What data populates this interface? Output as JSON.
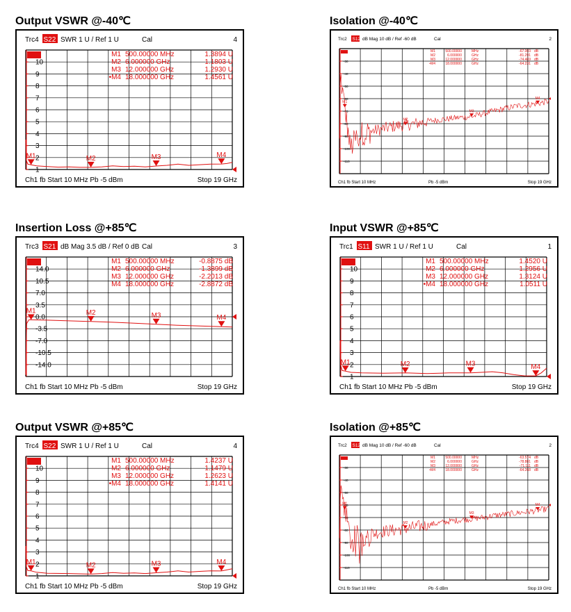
{
  "chart_data": [
    {
      "type": "line",
      "title": "Output VSWR @-40℃",
      "header": {
        "trc": "Trc4",
        "param": "S22",
        "fmt": "SWR  1 U /  Ref 1 U",
        "cal": "Cal",
        "num": "4"
      },
      "footer": {
        "left": "Ch1  fb  Start  10 MHz     Pb   -5 dBm",
        "right": "Stop  19 GHz"
      },
      "yticks": [
        "10",
        "9",
        "8",
        "7",
        "6",
        "5",
        "4",
        "3",
        "2",
        "1"
      ],
      "ylim": [
        1,
        11
      ],
      "xlim": [
        0.01,
        19
      ],
      "markers": [
        {
          "label": "M1",
          "freq": "500.00000 MHz",
          "value": "1.3894 U",
          "x": 0.5,
          "y": 1.39
        },
        {
          "label": "M2",
          "freq": "6.000000 GHz",
          "value": "1.1803 U",
          "x": 6,
          "y": 1.18
        },
        {
          "label": "M3",
          "freq": "12.000000 GHz",
          "value": "1.2930 U",
          "x": 12,
          "y": 1.29
        },
        {
          "label": "M4",
          "freq": "18.000000 GHz",
          "value": "1.4561 U",
          "x": 18,
          "y": 1.46
        }
      ],
      "trace": [
        [
          0.01,
          3.5
        ],
        [
          0.05,
          1.8
        ],
        [
          0.2,
          1.45
        ],
        [
          0.5,
          1.39
        ],
        [
          1,
          1.3
        ],
        [
          2,
          1.25
        ],
        [
          3,
          1.2
        ],
        [
          4,
          1.22
        ],
        [
          5,
          1.18
        ],
        [
          6,
          1.18
        ],
        [
          7,
          1.22
        ],
        [
          8,
          1.3
        ],
        [
          9,
          1.25
        ],
        [
          10,
          1.28
        ],
        [
          11,
          1.22
        ],
        [
          12,
          1.29
        ],
        [
          13,
          1.35
        ],
        [
          14,
          1.45
        ],
        [
          15,
          1.35
        ],
        [
          16,
          1.4
        ],
        [
          17,
          1.45
        ],
        [
          18,
          1.46
        ],
        [
          18.5,
          1.5
        ],
        [
          19,
          1.6
        ]
      ]
    },
    {
      "type": "line",
      "title": "Isolation @-40℃",
      "header": {
        "trc": "Trc2",
        "param": "S12",
        "fmt": "dB Mag  10 dB /  Ref -60 dB",
        "cal": "Cal",
        "num": "2"
      },
      "footer": {
        "left": "Ch1  fb  Start  10 MHz",
        "mid": "Pb   -5 dBm",
        "right": "Stop  19 GHz"
      },
      "yticks": [
        "-30",
        "-40",
        "-50",
        "-60",
        "-70",
        "-80",
        "-90",
        "-100",
        "-110"
      ],
      "ylim": [
        -120,
        -20
      ],
      "xlim": [
        0.01,
        19
      ],
      "markers": [
        {
          "label": "M1",
          "freq": "500.00000",
          "unit": "MHz",
          "value": "-67.003",
          "vunit": "dB",
          "x": 0.5,
          "y": -67
        },
        {
          "label": "M2",
          "freq": "6.000000",
          "unit": "GHz",
          "value": "-81.291",
          "vunit": "dB",
          "x": 6,
          "y": -81.3
        },
        {
          "label": "M3",
          "freq": "12.000000",
          "unit": "GHz",
          "value": "-74.469",
          "vunit": "dB",
          "x": 12,
          "y": -74.5
        },
        {
          "label": "M4",
          "freq": "18.000000",
          "unit": "GHz",
          "value": "-64.231",
          "vunit": "dB",
          "x": 18,
          "y": -64.2
        }
      ],
      "trace": [
        [
          0.01,
          -95
        ],
        [
          0.1,
          -40
        ],
        [
          0.3,
          -55
        ],
        [
          0.5,
          -67
        ],
        [
          1,
          -100
        ],
        [
          1.5,
          -92
        ],
        [
          2,
          -88
        ],
        [
          3,
          -86
        ],
        [
          4,
          -84
        ],
        [
          5,
          -82
        ],
        [
          6,
          -81
        ],
        [
          7,
          -80
        ],
        [
          8,
          -78
        ],
        [
          9,
          -77
        ],
        [
          10,
          -76
        ],
        [
          11,
          -75
        ],
        [
          12,
          -74.5
        ],
        [
          13,
          -72
        ],
        [
          14,
          -70
        ],
        [
          15,
          -68
        ],
        [
          16,
          -66
        ],
        [
          17,
          -65
        ],
        [
          18,
          -64
        ],
        [
          19,
          -62
        ]
      ],
      "noise": true
    },
    {
      "type": "line",
      "title": "Insertion Loss @+85℃",
      "header": {
        "trc": "Trc3",
        "param": "S21",
        "fmt": "dB Mag  3.5 dB /  Ref 0 dB",
        "cal": "Cal",
        "num": "3"
      },
      "footer": {
        "left": "Ch1  fb  Start  10 MHz     Pb   -5 dBm",
        "right": "Stop  19 GHz"
      },
      "yticks": [
        "14.0",
        "10.5",
        "7.0",
        "3.5",
        "0.0",
        "-3.5",
        "-7.0",
        "-10.5",
        "-14.0"
      ],
      "ylim": [
        -17.5,
        17.5
      ],
      "xlim": [
        0.01,
        19
      ],
      "markers": [
        {
          "label": "M1",
          "freq": "500.00000 MHz",
          "value": "-0.8875 dB",
          "x": 0.5,
          "y": -0.89
        },
        {
          "label": "M2",
          "freq": "6.000000 GHz",
          "value": "-1.3899 dB",
          "x": 6,
          "y": -1.39
        },
        {
          "label": "M3",
          "freq": "12.000000 GHz",
          "value": "-2.2013 dB",
          "x": 12,
          "y": -2.2
        },
        {
          "label": "M4",
          "freq": "18.000000 GHz",
          "value": "-2.8872 dB",
          "x": 18,
          "y": -2.89
        }
      ],
      "trace": [
        [
          0.01,
          -17
        ],
        [
          0.05,
          -8
        ],
        [
          0.1,
          -2
        ],
        [
          0.3,
          -0.9
        ],
        [
          0.5,
          -0.89
        ],
        [
          2,
          -1.0
        ],
        [
          4,
          -1.2
        ],
        [
          6,
          -1.39
        ],
        [
          8,
          -1.6
        ],
        [
          10,
          -1.9
        ],
        [
          12,
          -2.2
        ],
        [
          14,
          -2.5
        ],
        [
          16,
          -2.7
        ],
        [
          18,
          -2.89
        ],
        [
          19,
          -3.0
        ]
      ]
    },
    {
      "type": "line",
      "title": "Input VSWR @+85℃",
      "header": {
        "trc": "Trc1",
        "param": "S11",
        "fmt": "SWR  1 U /  Ref 1 U",
        "cal": "Cal",
        "num": "1"
      },
      "footer": {
        "left": "Ch1  fb  Start  10 MHz     Pb   -5 dBm",
        "right": "Stop  19 GHz"
      },
      "yticks": [
        "10",
        "9",
        "8",
        "7",
        "6",
        "5",
        "4",
        "3",
        "2",
        "1"
      ],
      "ylim": [
        1,
        11
      ],
      "xlim": [
        0.01,
        19
      ],
      "markers": [
        {
          "label": "M1",
          "freq": "500.00000 MHz",
          "value": "1.4520 U",
          "x": 0.5,
          "y": 1.45
        },
        {
          "label": "M2",
          "freq": "6.000000 GHz",
          "value": "1.2956 U",
          "x": 6,
          "y": 1.3
        },
        {
          "label": "M3",
          "freq": "12.000000 GHz",
          "value": "1.3124 U",
          "x": 12,
          "y": 1.31
        },
        {
          "label": "M4",
          "freq": "18.000000 GHz",
          "value": "1.0511 U",
          "x": 18,
          "y": 1.05
        }
      ],
      "trace": [
        [
          0.01,
          4
        ],
        [
          0.05,
          2
        ],
        [
          0.2,
          1.5
        ],
        [
          0.5,
          1.45
        ],
        [
          1,
          1.35
        ],
        [
          2,
          1.3
        ],
        [
          4,
          1.28
        ],
        [
          6,
          1.3
        ],
        [
          8,
          1.25
        ],
        [
          10,
          1.3
        ],
        [
          12,
          1.31
        ],
        [
          13,
          1.35
        ],
        [
          14,
          1.4
        ],
        [
          15,
          1.3
        ],
        [
          16,
          1.15
        ],
        [
          17,
          1.05
        ],
        [
          18,
          1.05
        ],
        [
          18.5,
          1.3
        ],
        [
          19,
          1.7
        ]
      ]
    },
    {
      "type": "line",
      "title": "Output VSWR @+85℃",
      "header": {
        "trc": "Trc4",
        "param": "S22",
        "fmt": "SWR  1 U /  Ref 1 U",
        "cal": "Cal",
        "num": "4"
      },
      "footer": {
        "left": "Ch1  fb  Start  10 MHz     Pb   -5 dBm",
        "right": "Stop  19 GHz"
      },
      "yticks": [
        "10",
        "9",
        "8",
        "7",
        "6",
        "5",
        "4",
        "3",
        "2",
        "1"
      ],
      "ylim": [
        1,
        11
      ],
      "xlim": [
        0.01,
        19
      ],
      "markers": [
        {
          "label": "M1",
          "freq": "500.00000 MHz",
          "value": "1.4237 U",
          "x": 0.5,
          "y": 1.42
        },
        {
          "label": "M2",
          "freq": "6.000000 GHz",
          "value": "1.1479 U",
          "x": 6,
          "y": 1.15
        },
        {
          "label": "M3",
          "freq": "12.000000 GHz",
          "value": "1.2623 U",
          "x": 12,
          "y": 1.26
        },
        {
          "label": "M4",
          "freq": "18.000000 GHz",
          "value": "1.4141 U",
          "x": 18,
          "y": 1.41
        }
      ],
      "trace": [
        [
          0.01,
          3.5
        ],
        [
          0.05,
          1.8
        ],
        [
          0.2,
          1.45
        ],
        [
          0.5,
          1.42
        ],
        [
          1,
          1.3
        ],
        [
          2,
          1.22
        ],
        [
          4,
          1.2
        ],
        [
          6,
          1.15
        ],
        [
          7,
          1.2
        ],
        [
          8,
          1.28
        ],
        [
          9,
          1.22
        ],
        [
          10,
          1.25
        ],
        [
          11,
          1.2
        ],
        [
          12,
          1.26
        ],
        [
          13,
          1.32
        ],
        [
          14,
          1.42
        ],
        [
          15,
          1.32
        ],
        [
          16,
          1.38
        ],
        [
          17,
          1.42
        ],
        [
          18,
          1.41
        ],
        [
          18.5,
          1.5
        ],
        [
          19,
          1.6
        ]
      ]
    },
    {
      "type": "line",
      "title": "Isolation @+85℃",
      "header": {
        "trc": "Trc2",
        "param": "S12",
        "fmt": "dB Mag  10 dB /  Ref -60 dB",
        "cal": "Cal",
        "num": "2"
      },
      "footer": {
        "left": "Ch1  fb  Start  10 MHz",
        "mid": "Pb   -5 dBm",
        "right": "Stop  19 GHz"
      },
      "yticks": [
        "-30",
        "-40",
        "-50",
        "-60",
        "-70",
        "-80",
        "-90",
        "-100",
        "-110"
      ],
      "ylim": [
        -120,
        -20
      ],
      "xlim": [
        0.01,
        19
      ],
      "markers": [
        {
          "label": "M1",
          "freq": "500.00000",
          "unit": "MHz",
          "value": "-63.574",
          "vunit": "dB",
          "x": 0.5,
          "y": -63.6
        },
        {
          "label": "M2",
          "freq": "6.000000",
          "unit": "GHz",
          "value": "-78.881",
          "vunit": "dB",
          "x": 6,
          "y": -78.9
        },
        {
          "label": "M3",
          "freq": "12.000000",
          "unit": "GHz",
          "value": "-71.111",
          "vunit": "dB",
          "x": 12,
          "y": -71.1
        },
        {
          "label": "M4",
          "freq": "18.000000",
          "unit": "GHz",
          "value": "-64.268",
          "vunit": "dB",
          "x": 18,
          "y": -64.3
        }
      ],
      "trace": [
        [
          0.01,
          -95
        ],
        [
          0.1,
          -45
        ],
        [
          0.3,
          -55
        ],
        [
          0.5,
          -63.6
        ],
        [
          1,
          -88
        ],
        [
          1.5,
          -86
        ],
        [
          2,
          -85
        ],
        [
          3,
          -83
        ],
        [
          4,
          -81
        ],
        [
          5,
          -80
        ],
        [
          6,
          -78.9
        ],
        [
          7,
          -77.5
        ],
        [
          8,
          -76
        ],
        [
          9,
          -74.5
        ],
        [
          10,
          -73
        ],
        [
          11,
          -72
        ],
        [
          12,
          -71.1
        ],
        [
          13,
          -70
        ],
        [
          14,
          -68.5
        ],
        [
          15,
          -67.5
        ],
        [
          16,
          -66.5
        ],
        [
          17,
          -65.5
        ],
        [
          18,
          -64.3
        ],
        [
          19,
          -63
        ]
      ],
      "noise": true
    }
  ]
}
